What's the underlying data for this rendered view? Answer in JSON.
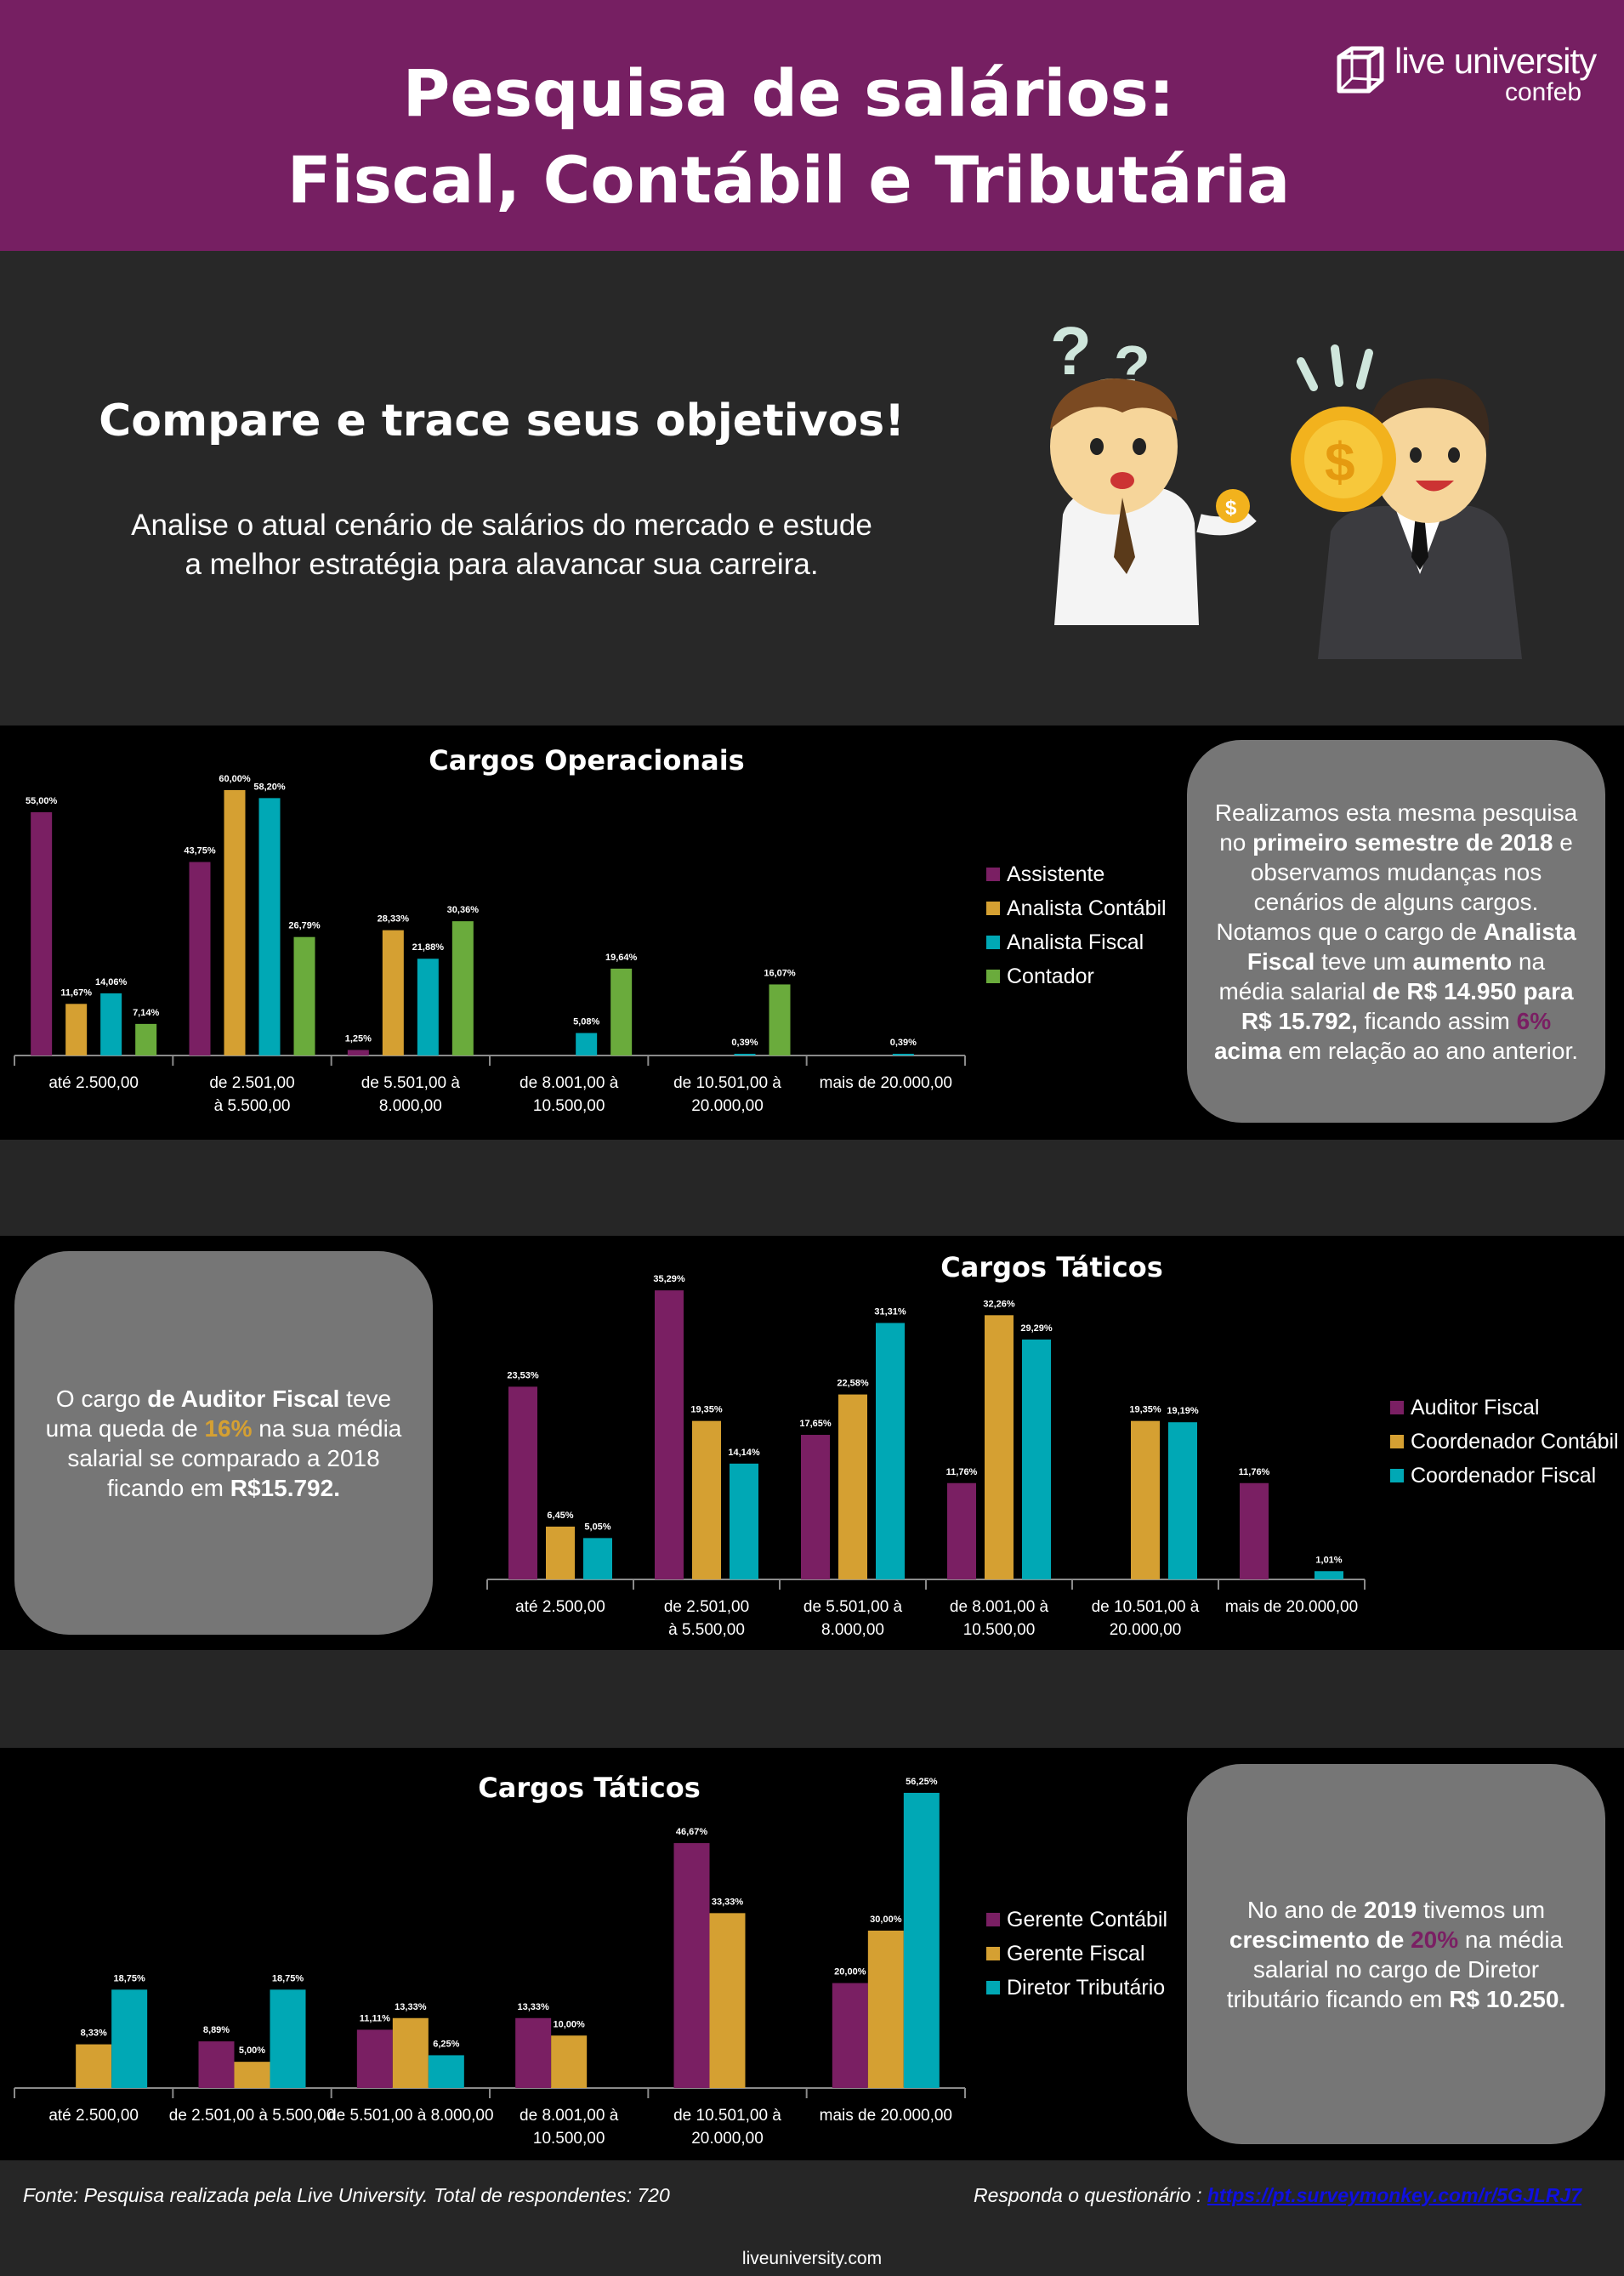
{
  "header": {
    "title_line1": "Pesquisa de salários:",
    "title_line2": "Fiscal, Contábil e Tributária",
    "logo_text": "live university",
    "logo_sub": "confeb",
    "bg_color": "#761f62"
  },
  "hero": {
    "title": "Compare e trace seus objetivos!",
    "subtitle_line1": "Analise o atual cenário de salários do mercado e estude",
    "subtitle_line2": "a melhor estratégia para alavancar sua carreira.",
    "illustration_text": [
      "?",
      "?",
      "$",
      "$"
    ]
  },
  "colors": {
    "purple": "#7a1f63",
    "orange": "#d5a032",
    "cyan": "#00a8b5",
    "green": "#6aab3c",
    "box": "#767676"
  },
  "boxes": {
    "box1": [
      "Realizamos esta mesma pesquisa no ",
      "primeiro semestre de 2018",
      " e observamos mudanças nos cenários de alguns cargos. Notamos que o cargo de ",
      "Analista Fiscal",
      " teve um ",
      "aumento",
      " na média salarial ",
      "de R$ 14.950 para R$ 15.792,",
      " ficando assim ",
      "6%",
      " ",
      "acima",
      " em relação ao ano anterior."
    ],
    "box2": [
      "O cargo ",
      "de Auditor Fiscal",
      " teve uma queda de ",
      "16%",
      " na sua média salarial se comparado a 2018 ficando em ",
      "R$15.792."
    ],
    "box3": [
      "No ano de ",
      "2019",
      " tivemos um ",
      "crescimento de ",
      "20%",
      " na média salarial no cargo de Diretor tributário ficando em ",
      "R$ 10.250."
    ]
  },
  "chart_data": [
    {
      "type": "bar",
      "title": "Cargos Operacionais",
      "categories": [
        [
          "até 2.500,00"
        ],
        [
          "de 2.501,00",
          "à 5.500,00"
        ],
        [
          "de 5.501,00 à",
          "8.000,00"
        ],
        [
          "de 8.001,00 à",
          "10.500,00"
        ],
        [
          "de 10.501,00 à",
          "20.000,00"
        ],
        [
          "mais de 20.000,00"
        ]
      ],
      "series": [
        {
          "name": "Assistente",
          "color": "#7a1f63",
          "values": [
            55.0,
            43.75,
            1.25,
            null,
            null,
            null
          ],
          "labels": [
            "55,00%",
            "43,75%",
            "1,25%",
            "",
            "",
            ""
          ]
        },
        {
          "name": "Analista Contábil",
          "color": "#d5a032",
          "values": [
            11.67,
            60.0,
            28.33,
            null,
            null,
            null
          ],
          "labels": [
            "11,67%",
            "60,00%",
            "28,33%",
            "",
            "",
            ""
          ]
        },
        {
          "name": "Analista Fiscal",
          "color": "#00a8b5",
          "values": [
            14.06,
            58.2,
            21.88,
            5.08,
            0.39,
            0.39
          ],
          "labels": [
            "14,06%",
            "58,20%",
            "21,88%",
            "5,08%",
            "0,39%",
            "0,39%"
          ]
        },
        {
          "name": "Contador",
          "color": "#6aab3c",
          "values": [
            7.14,
            26.79,
            30.36,
            19.64,
            16.07,
            null
          ],
          "labels": [
            "7,14%",
            "26,79%",
            "30,36%",
            "19,64%",
            "16,07%",
            ""
          ]
        }
      ],
      "legend": "right",
      "grid": false
    },
    {
      "type": "bar",
      "title": "Cargos Táticos",
      "categories": [
        [
          "até 2.500,00"
        ],
        [
          "de 2.501,00",
          "à 5.500,00"
        ],
        [
          "de 5.501,00 à",
          "8.000,00"
        ],
        [
          "de 8.001,00 à",
          "10.500,00"
        ],
        [
          "de 10.501,00 à",
          "20.000,00"
        ],
        [
          "mais de 20.000,00"
        ]
      ],
      "series": [
        {
          "name": "Auditor Fiscal",
          "color": "#7a1f63",
          "values": [
            23.53,
            35.29,
            17.65,
            11.76,
            null,
            11.76
          ],
          "labels": [
            "23,53%",
            "35,29%",
            "17,65%",
            "11,76%",
            "",
            "11,76%"
          ]
        },
        {
          "name": "Coordenador Contábil",
          "color": "#d5a032",
          "values": [
            6.45,
            19.35,
            22.58,
            32.26,
            19.35,
            null
          ],
          "labels": [
            "6,45%",
            "19,35%",
            "22,58%",
            "32,26%",
            "19,35%",
            ""
          ]
        },
        {
          "name": "Coordenador Fiscal",
          "color": "#00a8b5",
          "values": [
            5.05,
            14.14,
            31.31,
            29.29,
            19.19,
            1.01
          ],
          "labels": [
            "5,05%",
            "14,14%",
            "31,31%",
            "29,29%",
            "19,19%",
            "1,01%"
          ]
        }
      ],
      "legend": "right",
      "grid": false
    },
    {
      "type": "bar",
      "title": "Cargos Táticos",
      "categories": [
        [
          "até 2.500,00"
        ],
        [
          "de 2.501,00 à 5.500,00"
        ],
        [
          "de 5.501,00 à 8.000,00"
        ],
        [
          "de 8.001,00 à",
          "10.500,00"
        ],
        [
          "de 10.501,00 à",
          "20.000,00"
        ],
        [
          "mais de 20.000,00"
        ]
      ],
      "series": [
        {
          "name": "Gerente Contábil",
          "color": "#7a1f63",
          "values": [
            null,
            8.89,
            11.11,
            13.33,
            46.67,
            20.0
          ],
          "labels": [
            "",
            "8,89%",
            "11,11%",
            "13,33%",
            "46,67%",
            "20,00%"
          ]
        },
        {
          "name": "Gerente Fiscal",
          "color": "#d5a032",
          "values": [
            8.33,
            5.0,
            13.33,
            10.0,
            33.33,
            30.0
          ],
          "labels": [
            "8,33%",
            "5,00%",
            "13,33%",
            "10,00%",
            "33,33%",
            "30,00%"
          ]
        },
        {
          "name": "Diretor Tributário",
          "color": "#00a8b5",
          "values": [
            18.75,
            18.75,
            6.25,
            null,
            null,
            56.25
          ],
          "labels": [
            "18,75%",
            "18,75%",
            "6,25%",
            "",
            "",
            "56,25%"
          ]
        }
      ],
      "legend": "right",
      "grid": false
    }
  ],
  "footer": {
    "source": "Fonte: Pesquisa realizada pela Live University. Total de respondentes: 720",
    "cta_label": "Responda o questionário :",
    "cta_link": "https://pt.surveymonkey.com/r/5GJLRJ7",
    "site": "liveuniversity.com"
  }
}
